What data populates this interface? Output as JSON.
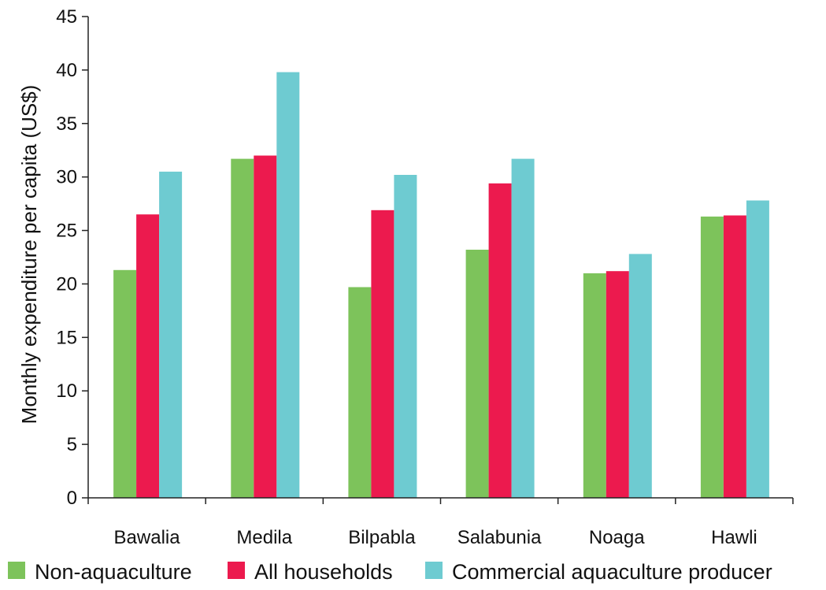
{
  "chart_data": {
    "type": "bar",
    "title": "",
    "xlabel": "",
    "ylabel": "Monthly expenditure per capita (US$)",
    "ylim": [
      0,
      45
    ],
    "yticks": [
      0,
      5,
      10,
      15,
      20,
      25,
      30,
      35,
      40,
      45
    ],
    "grid": false,
    "legend_position": "bottom",
    "categories": [
      "Bawalia",
      "Medila",
      "Bilpabla",
      "Salabunia",
      "Noaga",
      "Hawli"
    ],
    "series": [
      {
        "name": "Non-aquaculture",
        "color": "#7dc35b",
        "values": [
          21.3,
          31.7,
          19.7,
          23.2,
          21.0,
          26.3
        ]
      },
      {
        "name": "All households",
        "color": "#ec1a4e",
        "values": [
          26.5,
          32.0,
          26.9,
          29.4,
          21.2,
          26.4
        ]
      },
      {
        "name": "Commercial aquaculture producer",
        "color": "#6ecbd1",
        "values": [
          30.5,
          39.8,
          30.2,
          31.7,
          22.8,
          27.8
        ]
      }
    ]
  }
}
